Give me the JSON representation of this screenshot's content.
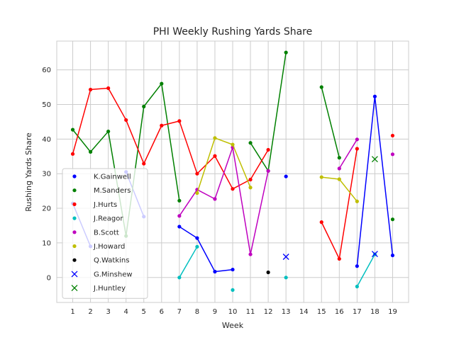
{
  "chart_data": {
    "type": "line",
    "title": "PHI Weekly Rushing Yards Share",
    "xlabel": "Week",
    "ylabel": "Rushing Yards Share",
    "xlim": [
      0.1,
      19.9
    ],
    "ylim": [
      -7.2,
      68.3
    ],
    "xticks": [
      1,
      2,
      3,
      4,
      5,
      6,
      7,
      8,
      9,
      10,
      11,
      12,
      13,
      14,
      15,
      16,
      17,
      18,
      19
    ],
    "yticks": [
      0,
      10,
      20,
      30,
      40,
      50,
      60
    ],
    "grid": true,
    "legend_position": "lower-left",
    "series": [
      {
        "name": "K.Gainwell",
        "color": "#0000ff",
        "marker": "dot",
        "x": [
          1,
          2,
          3,
          4,
          5,
          6,
          7,
          8,
          9,
          10,
          11,
          12,
          13,
          14,
          15,
          16,
          17,
          18,
          19
        ],
        "y": [
          21.4,
          9.0,
          null,
          30.5,
          17.6,
          null,
          14.7,
          11.4,
          1.7,
          2.3,
          null,
          null,
          29.2,
          null,
          null,
          null,
          3.3,
          52.3,
          6.4
        ]
      },
      {
        "name": "M.Sanders",
        "color": "#008000",
        "marker": "dot",
        "x": [
          1,
          2,
          3,
          4,
          5,
          6,
          7,
          8,
          9,
          10,
          11,
          12,
          13,
          14,
          15,
          16,
          17,
          18,
          19
        ],
        "y": [
          42.7,
          36.3,
          42.2,
          12.0,
          49.4,
          56.0,
          22.2,
          null,
          null,
          null,
          38.9,
          30.8,
          65.0,
          null,
          55.0,
          34.6,
          null,
          null,
          16.8
        ]
      },
      {
        "name": "J.Hurts",
        "color": "#ff0000",
        "marker": "dot",
        "x": [
          1,
          2,
          3,
          4,
          5,
          6,
          7,
          8,
          9,
          10,
          11,
          12,
          13,
          14,
          15,
          16,
          17,
          18,
          19
        ],
        "y": [
          35.7,
          54.3,
          54.7,
          45.5,
          32.9,
          43.9,
          45.2,
          30.0,
          35.1,
          25.6,
          28.3,
          36.9,
          null,
          null,
          16.0,
          5.4,
          37.2,
          null,
          41.0
        ]
      },
      {
        "name": "J.Reagor",
        "color": "#00bfbf",
        "marker": "dot",
        "x": [
          1,
          2,
          3,
          4,
          5,
          6,
          7,
          8,
          9,
          10,
          11,
          12,
          13,
          14,
          15,
          16,
          17,
          18,
          19
        ],
        "y": [
          null,
          null,
          null,
          null,
          null,
          null,
          0.0,
          8.9,
          null,
          -3.6,
          null,
          null,
          0.0,
          null,
          null,
          null,
          -2.6,
          6.7,
          null
        ]
      },
      {
        "name": "B.Scott",
        "color": "#bf00bf",
        "marker": "dot",
        "x": [
          1,
          2,
          3,
          4,
          5,
          6,
          7,
          8,
          9,
          10,
          11,
          12,
          13,
          14,
          15,
          16,
          17,
          18,
          19
        ],
        "y": [
          null,
          null,
          null,
          null,
          null,
          null,
          17.8,
          25.4,
          22.7,
          37.6,
          6.7,
          30.8,
          null,
          null,
          null,
          31.5,
          39.9,
          null,
          35.6
        ]
      },
      {
        "name": "J.Howard",
        "color": "#bfbf00",
        "marker": "dot",
        "x": [
          1,
          2,
          3,
          4,
          5,
          6,
          7,
          8,
          9,
          10,
          11,
          12,
          13,
          14,
          15,
          16,
          17,
          18,
          19
        ],
        "y": [
          null,
          null,
          null,
          null,
          null,
          null,
          null,
          24.4,
          40.3,
          38.4,
          26.0,
          null,
          null,
          null,
          29.0,
          28.4,
          22.0,
          null,
          null
        ]
      },
      {
        "name": "Q.Watkins",
        "color": "#000000",
        "marker": "dot",
        "x": [
          1,
          2,
          3,
          4,
          5,
          6,
          7,
          8,
          9,
          10,
          11,
          12,
          13,
          14,
          15,
          16,
          17,
          18,
          19
        ],
        "y": [
          null,
          null,
          null,
          null,
          null,
          null,
          null,
          null,
          null,
          null,
          null,
          1.5,
          null,
          null,
          null,
          null,
          null,
          null,
          null
        ]
      },
      {
        "name": "G.Minshew",
        "color": "#0000ff",
        "marker": "x",
        "x": [
          1,
          2,
          3,
          4,
          5,
          6,
          7,
          8,
          9,
          10,
          11,
          12,
          13,
          14,
          15,
          16,
          17,
          18,
          19
        ],
        "y": [
          null,
          null,
          null,
          null,
          null,
          null,
          null,
          null,
          null,
          null,
          null,
          null,
          6.0,
          null,
          null,
          null,
          null,
          6.8,
          null
        ]
      },
      {
        "name": "J.Huntley",
        "color": "#008000",
        "marker": "x",
        "x": [
          1,
          2,
          3,
          4,
          5,
          6,
          7,
          8,
          9,
          10,
          11,
          12,
          13,
          14,
          15,
          16,
          17,
          18,
          19
        ],
        "y": [
          null,
          null,
          null,
          null,
          null,
          null,
          null,
          null,
          null,
          null,
          null,
          null,
          null,
          null,
          null,
          null,
          null,
          34.2,
          null
        ]
      }
    ]
  }
}
